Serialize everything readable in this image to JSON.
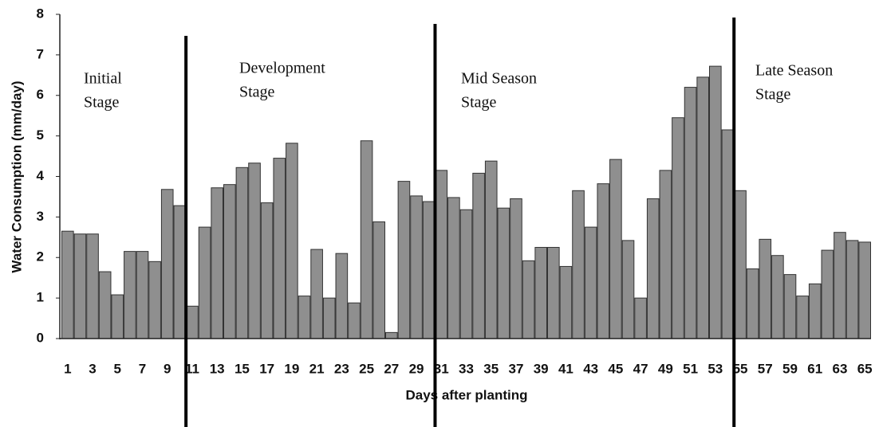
{
  "chart_data": {
    "type": "bar",
    "x_label": "Days after planting",
    "y_label": "Water Consumption (mm/day)",
    "categories": [
      1,
      null,
      3,
      null,
      5,
      null,
      7,
      null,
      9,
      null,
      11,
      null,
      13,
      null,
      15,
      null,
      17,
      null,
      19,
      null,
      21,
      null,
      23,
      null,
      25,
      null,
      27,
      null,
      29,
      null,
      31,
      null,
      33,
      null,
      35,
      null,
      37,
      null,
      39,
      null,
      41,
      null,
      43,
      null,
      45,
      null,
      47,
      null,
      49,
      null,
      51,
      null,
      53,
      null,
      55,
      null,
      57,
      null,
      59,
      null,
      61,
      null,
      63,
      null,
      65
    ],
    "values": [
      2.65,
      2.58,
      2.58,
      1.65,
      1.08,
      2.15,
      2.15,
      1.9,
      3.68,
      3.28,
      0.8,
      2.75,
      3.72,
      3.8,
      4.22,
      4.33,
      3.35,
      4.45,
      4.82,
      1.05,
      2.2,
      1.0,
      2.1,
      0.88,
      4.88,
      2.88,
      0.15,
      3.88,
      3.52,
      3.38,
      4.15,
      3.48,
      3.18,
      4.08,
      4.38,
      3.22,
      3.45,
      1.92,
      2.25,
      2.25,
      1.78,
      3.65,
      2.75,
      3.82,
      4.42,
      2.42,
      1.0,
      3.45,
      4.15,
      5.45,
      6.2,
      6.45,
      6.72,
      5.15,
      3.65,
      1.72,
      2.45,
      2.05,
      1.58,
      1.05,
      1.35,
      2.18,
      2.62,
      2.42,
      2.38
    ],
    "color": "#8f8f8f",
    "ylim": [
      0,
      8
    ],
    "yticks": [
      0,
      1,
      2,
      3,
      4,
      5,
      6,
      7,
      8
    ],
    "grid": false,
    "annotations": [
      [
        "Initial",
        "Stage"
      ],
      [
        "Development",
        "Stage"
      ],
      [
        "Mid Season",
        "Stage"
      ],
      [
        "Late Season",
        "Stage"
      ]
    ]
  }
}
